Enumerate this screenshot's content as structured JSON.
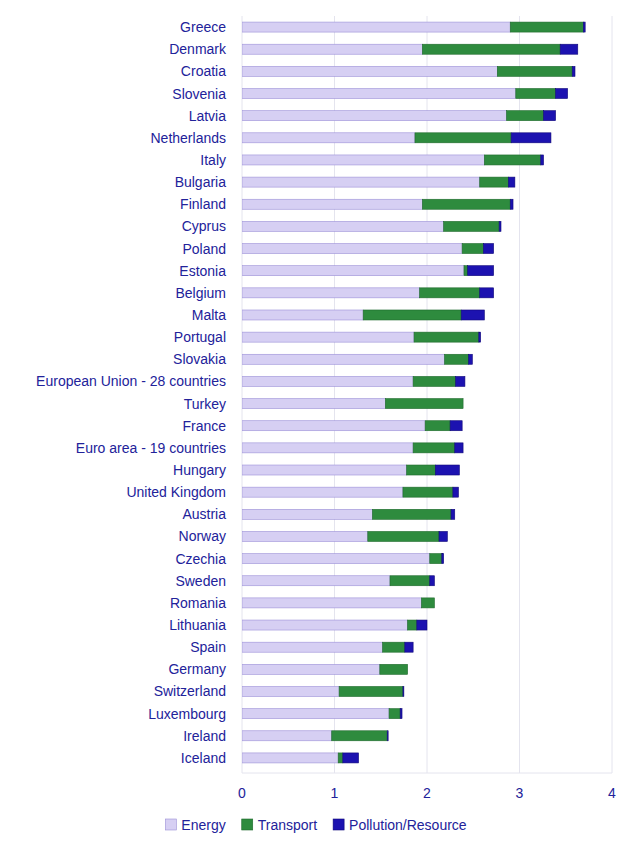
{
  "chart_data": {
    "type": "bar",
    "orientation": "horizontal",
    "stacked": true,
    "grid": true,
    "legend": "bottom",
    "categories": [
      "Greece",
      "Denmark",
      "Croatia",
      "Slovenia",
      "Latvia",
      "Netherlands",
      "Italy",
      "Bulgaria",
      "Finland",
      "Cyprus",
      "Poland",
      "Estonia",
      "Belgium",
      "Malta",
      "Portugal",
      "Slovakia",
      "European Union - 28 countries",
      "Turkey",
      "France",
      "Euro area - 19 countries",
      "Hungary",
      "United Kingdom",
      "Austria",
      "Norway",
      "Czechia",
      "Sweden",
      "Romania",
      "Lithuania",
      "Spain",
      "Germany",
      "Switzerland",
      "Luxembourg",
      "Ireland",
      "Iceland"
    ],
    "series": [
      {
        "name": "Energy",
        "color": "#d6cff3",
        "values": [
          2.9,
          1.95,
          2.76,
          2.96,
          2.86,
          1.87,
          2.62,
          2.57,
          1.95,
          2.18,
          2.38,
          2.4,
          1.92,
          1.31,
          1.86,
          2.19,
          1.85,
          1.55,
          1.98,
          1.85,
          1.78,
          1.74,
          1.41,
          1.36,
          2.03,
          1.6,
          1.94,
          1.79,
          1.52,
          1.49,
          1.05,
          1.59,
          0.97,
          1.04
        ]
      },
      {
        "name": "Transport",
        "color": "#2e8b3e",
        "values": [
          0.79,
          1.49,
          0.81,
          0.43,
          0.4,
          1.04,
          0.61,
          0.31,
          0.95,
          0.6,
          0.23,
          0.04,
          0.65,
          1.06,
          0.7,
          0.26,
          0.46,
          0.84,
          0.27,
          0.45,
          0.31,
          0.54,
          0.85,
          0.77,
          0.13,
          0.43,
          0.14,
          0.1,
          0.24,
          0.3,
          0.69,
          0.12,
          0.6,
          0.05
        ]
      },
      {
        "name": "Pollution/Resource",
        "color": "#1c12b0",
        "values": [
          0.02,
          0.19,
          0.03,
          0.13,
          0.13,
          0.43,
          0.03,
          0.07,
          0.03,
          0.02,
          0.11,
          0.28,
          0.15,
          0.25,
          0.02,
          0.04,
          0.1,
          0.0,
          0.13,
          0.09,
          0.26,
          0.06,
          0.04,
          0.09,
          0.02,
          0.05,
          0.0,
          0.11,
          0.09,
          0.0,
          0.01,
          0.02,
          0.01,
          0.17
        ]
      }
    ],
    "xlim": [
      0,
      4
    ],
    "xticks": [
      0,
      1,
      2,
      3,
      4
    ]
  }
}
